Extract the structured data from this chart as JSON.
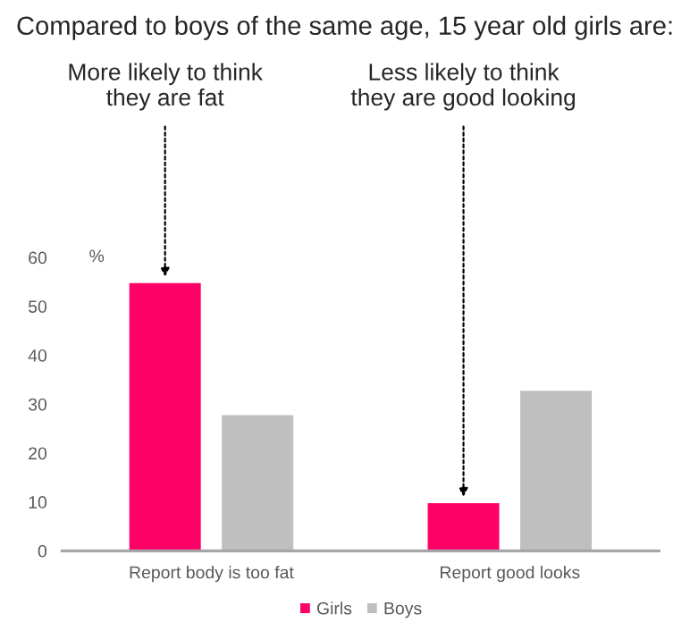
{
  "chart_data": {
    "type": "bar",
    "title": "Compared to boys of the same age, 15 year old girls are:",
    "ylabel": "%",
    "categories": [
      "Report body is too fat",
      "Report good looks"
    ],
    "series": [
      {
        "name": "Girls",
        "color": "#ff0066",
        "values": [
          55,
          10
        ]
      },
      {
        "name": "Boys",
        "color": "#bfbfbf",
        "values": [
          28,
          33
        ]
      }
    ],
    "ylim": [
      0,
      60
    ],
    "yticks": [
      0,
      10,
      20,
      30,
      40,
      50,
      60
    ],
    "grid": false,
    "legend": "bottom",
    "annotations": [
      {
        "text": "More likely to think\nthey are fat",
        "y": 55
      },
      {
        "text": "Less likely to think\nthey are good looking",
        "y": 10
      }
    ]
  }
}
